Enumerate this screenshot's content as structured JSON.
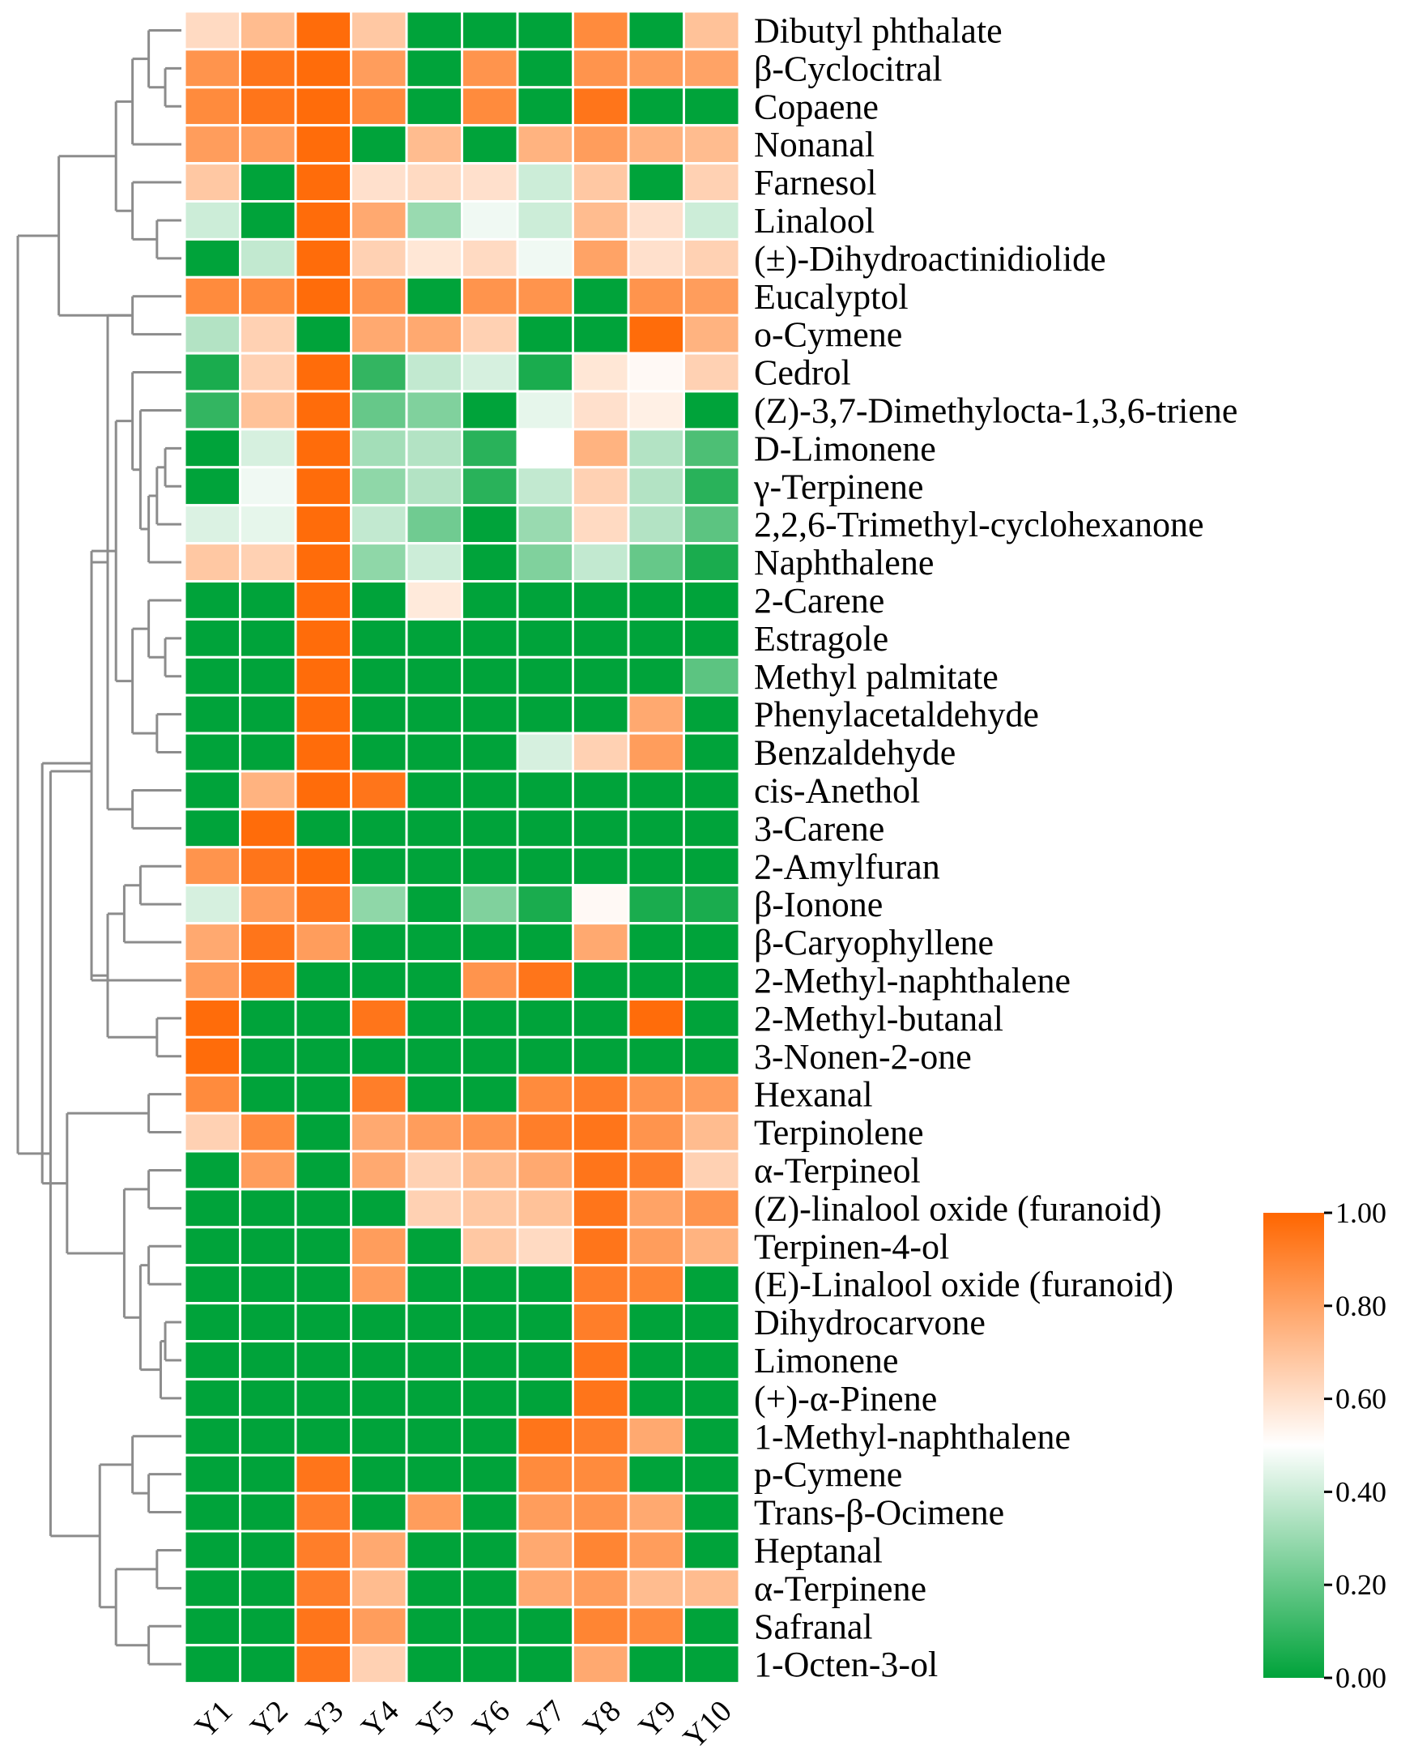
{
  "chart_data": {
    "type": "heatmap",
    "title": "",
    "columns": [
      "Y1",
      "Y2",
      "Y3",
      "Y4",
      "Y5",
      "Y6",
      "Y7",
      "Y8",
      "Y9",
      "Y10"
    ],
    "rows": [
      "Dibutyl phthalate",
      "β-Cyclocitral",
      "Copaene",
      "Nonanal",
      "Farnesol",
      "Linalool",
      "(±)-Dihydroactinidiolide",
      "Eucalyptol",
      "o-Cymene",
      "Cedrol",
      "(Z)-3,7-Dimethylocta-1,3,6-triene",
      "D-Limonene",
      "γ-Terpinene",
      "2,2,6-Trimethyl-cyclohexanone",
      "Naphthalene",
      "2-Carene",
      "Estragole",
      "Methyl palmitate",
      "Phenylacetaldehyde",
      "Benzaldehyde",
      "cis-Anethol",
      "3-Carene",
      "2-Amylfuran",
      "β-Ionone",
      "β-Caryophyllene",
      "2-Methyl-naphthalene",
      "2-Methyl-butanal",
      "3-Nonen-2-one",
      "Hexanal",
      "Terpinolene",
      "α-Terpineol",
      "(Z)-linalool oxide (furanoid)",
      "Terpinen-4-ol",
      "(E)-Linalool oxide (furanoid)",
      "Dihydrocarvone",
      "Limonene",
      "(+)-α-Pinene",
      "1-Methyl-naphthalene",
      "p-Cymene",
      "Trans-β-Ocimene",
      "Heptanal",
      "α-Terpinene",
      "Safranal",
      "1-Octen-3-ol"
    ],
    "values": [
      [
        0.62,
        0.72,
        0.98,
        0.68,
        0.0,
        0.0,
        0.0,
        0.88,
        0.0,
        0.7
      ],
      [
        0.85,
        0.95,
        0.98,
        0.82,
        0.0,
        0.85,
        0.0,
        0.85,
        0.82,
        0.8
      ],
      [
        0.88,
        0.95,
        0.98,
        0.88,
        0.0,
        0.88,
        0.0,
        0.95,
        0.0,
        0.0
      ],
      [
        0.82,
        0.82,
        0.98,
        0.0,
        0.72,
        0.0,
        0.75,
        0.82,
        0.75,
        0.72
      ],
      [
        0.68,
        0.0,
        0.98,
        0.6,
        0.62,
        0.6,
        0.4,
        0.68,
        0.0,
        0.65
      ],
      [
        0.4,
        0.0,
        0.98,
        0.78,
        0.3,
        0.47,
        0.4,
        0.72,
        0.6,
        0.4
      ],
      [
        0.0,
        0.38,
        0.98,
        0.65,
        0.58,
        0.62,
        0.47,
        0.8,
        0.6,
        0.65
      ],
      [
        0.88,
        0.88,
        0.98,
        0.85,
        0.0,
        0.85,
        0.85,
        0.0,
        0.85,
        0.82
      ],
      [
        0.35,
        0.65,
        0.0,
        0.78,
        0.78,
        0.65,
        0.0,
        0.0,
        0.98,
        0.75
      ],
      [
        0.05,
        0.65,
        0.98,
        0.1,
        0.38,
        0.42,
        0.05,
        0.58,
        0.52,
        0.65
      ],
      [
        0.1,
        0.7,
        0.98,
        0.2,
        0.25,
        0.0,
        0.45,
        0.6,
        0.55,
        0.0
      ],
      [
        0.0,
        0.42,
        0.98,
        0.32,
        0.35,
        0.08,
        0.5,
        0.75,
        0.35,
        0.15
      ],
      [
        0.0,
        0.47,
        0.98,
        0.28,
        0.35,
        0.08,
        0.38,
        0.65,
        0.35,
        0.08
      ],
      [
        0.43,
        0.45,
        0.98,
        0.38,
        0.22,
        0.0,
        0.3,
        0.62,
        0.35,
        0.18
      ],
      [
        0.68,
        0.65,
        0.98,
        0.28,
        0.4,
        0.0,
        0.25,
        0.38,
        0.2,
        0.05
      ],
      [
        0.0,
        0.0,
        0.98,
        0.0,
        0.57,
        0.0,
        0.0,
        0.0,
        0.0,
        0.0
      ],
      [
        0.0,
        0.0,
        0.98,
        0.0,
        0.0,
        0.0,
        0.0,
        0.0,
        0.0,
        0.0
      ],
      [
        0.0,
        0.0,
        0.98,
        0.0,
        0.0,
        0.0,
        0.0,
        0.0,
        0.0,
        0.18
      ],
      [
        0.0,
        0.0,
        0.98,
        0.0,
        0.0,
        0.0,
        0.0,
        0.0,
        0.78,
        0.0
      ],
      [
        0.0,
        0.0,
        0.98,
        0.0,
        0.0,
        0.0,
        0.42,
        0.65,
        0.82,
        0.0
      ],
      [
        0.0,
        0.75,
        0.98,
        0.95,
        0.0,
        0.0,
        0.0,
        0.0,
        0.0,
        0.0
      ],
      [
        0.0,
        0.98,
        0.0,
        0.0,
        0.0,
        0.0,
        0.0,
        0.0,
        0.0,
        0.0
      ],
      [
        0.85,
        0.95,
        0.98,
        0.0,
        0.0,
        0.0,
        0.0,
        0.0,
        0.0,
        0.0
      ],
      [
        0.42,
        0.82,
        0.95,
        0.28,
        0.0,
        0.25,
        0.05,
        0.52,
        0.05,
        0.05
      ],
      [
        0.78,
        0.95,
        0.82,
        0.0,
        0.0,
        0.0,
        0.0,
        0.78,
        0.0,
        0.0
      ],
      [
        0.82,
        0.95,
        0.0,
        0.0,
        0.0,
        0.85,
        0.95,
        0.0,
        0.0,
        0.0
      ],
      [
        0.98,
        0.0,
        0.0,
        0.95,
        0.0,
        0.0,
        0.0,
        0.0,
        0.98,
        0.0
      ],
      [
        0.98,
        0.0,
        0.0,
        0.0,
        0.0,
        0.0,
        0.0,
        0.0,
        0.0,
        0.0
      ],
      [
        0.88,
        0.0,
        0.0,
        0.92,
        0.0,
        0.0,
        0.88,
        0.92,
        0.85,
        0.82
      ],
      [
        0.65,
        0.88,
        0.0,
        0.78,
        0.82,
        0.85,
        0.92,
        0.95,
        0.85,
        0.72
      ],
      [
        0.0,
        0.82,
        0.0,
        0.78,
        0.65,
        0.72,
        0.78,
        0.95,
        0.92,
        0.65
      ],
      [
        0.0,
        0.0,
        0.0,
        0.0,
        0.65,
        0.68,
        0.7,
        0.95,
        0.8,
        0.85
      ],
      [
        0.0,
        0.0,
        0.0,
        0.82,
        0.0,
        0.68,
        0.62,
        0.95,
        0.82,
        0.75
      ],
      [
        0.0,
        0.0,
        0.0,
        0.82,
        0.0,
        0.0,
        0.0,
        0.92,
        0.9,
        0.0
      ],
      [
        0.0,
        0.0,
        0.0,
        0.0,
        0.0,
        0.0,
        0.0,
        0.92,
        0.0,
        0.0
      ],
      [
        0.0,
        0.0,
        0.0,
        0.0,
        0.0,
        0.0,
        0.0,
        0.95,
        0.0,
        0.0
      ],
      [
        0.0,
        0.0,
        0.0,
        0.0,
        0.0,
        0.0,
        0.0,
        0.95,
        0.0,
        0.0
      ],
      [
        0.0,
        0.0,
        0.0,
        0.0,
        0.0,
        0.0,
        0.95,
        0.92,
        0.78,
        0.0
      ],
      [
        0.0,
        0.0,
        0.95,
        0.0,
        0.0,
        0.0,
        0.88,
        0.88,
        0.0,
        0.0
      ],
      [
        0.0,
        0.0,
        0.92,
        0.0,
        0.82,
        0.0,
        0.82,
        0.85,
        0.78,
        0.0
      ],
      [
        0.0,
        0.0,
        0.92,
        0.78,
        0.0,
        0.0,
        0.78,
        0.9,
        0.82,
        0.0
      ],
      [
        0.0,
        0.0,
        0.92,
        0.72,
        0.0,
        0.0,
        0.78,
        0.82,
        0.72,
        0.72
      ],
      [
        0.0,
        0.0,
        0.95,
        0.82,
        0.0,
        0.0,
        0.0,
        0.9,
        0.88,
        0.0
      ],
      [
        0.0,
        0.0,
        0.95,
        0.65,
        0.0,
        0.0,
        0.0,
        0.78,
        0.0,
        0.0
      ]
    ],
    "colorbar": {
      "min": 0.0,
      "max": 1.0,
      "ticks": [
        "1.00",
        "0.80",
        "0.60",
        "0.40",
        "0.20",
        "0.00"
      ],
      "tick_values": [
        1.0,
        0.8,
        0.6,
        0.4,
        0.2,
        0.0
      ],
      "colors": {
        "low": "#00a33a",
        "mid": "#ffffff",
        "high": "#ff6600"
      }
    },
    "row_dendrogram": {
      "merges": [
        [
          1,
          2,
          0.43
        ],
        [
          11,
          12,
          0.43
        ],
        [
          16,
          17,
          0.43
        ],
        [
          34,
          35,
          0.43
        ],
        [
          -4,
          36,
          0.55
        ],
        [
          5,
          6,
          0.65
        ],
        [
          13,
          -2,
          0.65
        ],
        [
          18,
          19,
          0.65
        ],
        [
          26,
          27,
          0.65
        ],
        [
          40,
          41,
          0.65
        ],
        [
          0,
          -1,
          0.87
        ],
        [
          15,
          -3,
          0.87
        ],
        [
          14,
          -7,
          0.87
        ],
        [
          28,
          29,
          0.87
        ],
        [
          30,
          31,
          0.87
        ],
        [
          32,
          33,
          0.87
        ],
        [
          38,
          39,
          0.87
        ],
        [
          42,
          43,
          0.87
        ],
        [
          10,
          -13,
          1.09
        ],
        [
          22,
          23,
          1.09
        ],
        [
          -16,
          -5,
          1.09
        ],
        [
          -11,
          3,
          1.3
        ],
        [
          4,
          -6,
          1.3
        ],
        [
          -19,
          9,
          1.3
        ],
        [
          -12,
          -8,
          1.3
        ],
        [
          7,
          8,
          1.3
        ],
        [
          20,
          21,
          1.3
        ],
        [
          37,
          -17,
          1.3
        ],
        [
          -20,
          24,
          1.52
        ],
        [
          -21,
          -15,
          1.52
        ],
        [
          -22,
          -23,
          1.74
        ],
        [
          -24,
          -25,
          1.74
        ],
        [
          -10,
          -18,
          1.74
        ],
        [
          -26,
          -27,
          1.96
        ],
        [
          -29,
          -9,
          1.96
        ],
        [
          -28,
          -33,
          2.17
        ],
        [
          -32,
          -35,
          2.39
        ],
        [
          -34,
          25,
          2.39
        ],
        [
          -14,
          -30,
          3.04
        ],
        [
          -31,
          -26,
          3.26
        ],
        [
          -38,
          -36,
          3.48
        ],
        [
          -37,
          -39,
          3.7
        ],
        [
          -40,
          -41,
          4.35
        ]
      ],
      "max_height": 4.35
    }
  }
}
